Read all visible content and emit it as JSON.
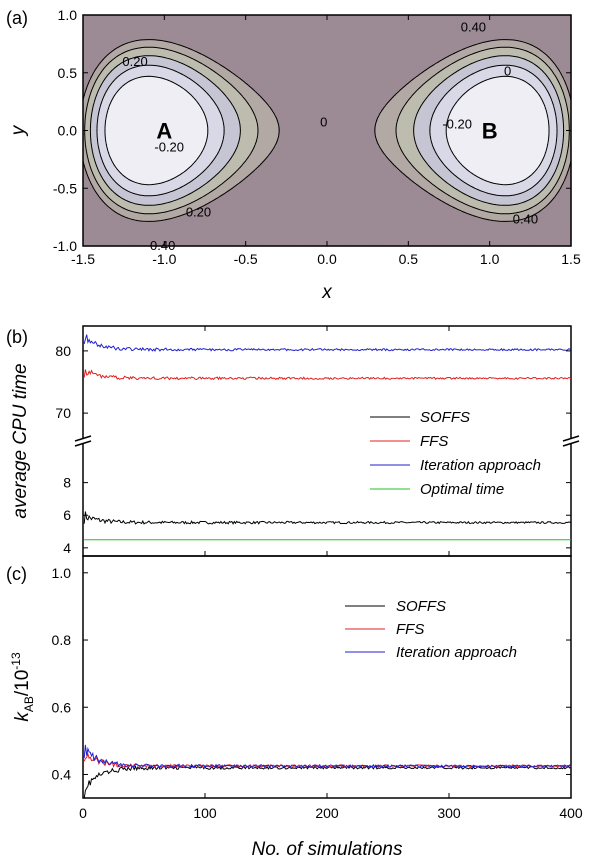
{
  "chart_data": [
    {
      "panel": "(a)",
      "type": "contour",
      "xlabel": "x",
      "ylabel": "y",
      "xlim": [
        -1.5,
        1.5
      ],
      "ylim": [
        -1.0,
        1.0
      ],
      "xticks": [
        "-1.5",
        "-1.0",
        "-0.5",
        "0.0",
        "0.5",
        "1.0",
        "1.5"
      ],
      "yticks": [
        "-1.0",
        "-0.5",
        "0.0",
        "0.5",
        "1.0"
      ],
      "state_labels": [
        "A",
        "B"
      ],
      "contour_labels": [
        {
          "text": "0.40",
          "x": 0.9,
          "y": 0.9
        },
        {
          "text": "0.20",
          "x": -1.18,
          "y": 0.6
        },
        {
          "text": "0",
          "x": 1.11,
          "y": 0.52
        },
        {
          "text": "0",
          "x": -0.02,
          "y": 0.08
        },
        {
          "text": "-0.20",
          "x": 0.8,
          "y": 0.06
        },
        {
          "text": "-0.20",
          "x": -0.97,
          "y": -0.14
        },
        {
          "text": "0.20",
          "x": -0.79,
          "y": -0.7
        },
        {
          "text": "0.40",
          "x": 1.22,
          "y": -0.76
        },
        {
          "text": "0.40",
          "x": -1.01,
          "y": -0.99
        }
      ],
      "levels": [
        -0.2,
        0,
        0.2,
        0.4,
        0.6
      ],
      "colors": [
        "#eeeef4",
        "#d9d8e6",
        "#c6c5d4",
        "#bdbcae",
        "#b2a8a4",
        "#9c8a94"
      ]
    },
    {
      "panel": "(b)",
      "type": "line",
      "ylabel": "average CPU time",
      "xlim": [
        0,
        400
      ],
      "broken_axis": {
        "lower": [
          3.5,
          10
        ],
        "upper": [
          66,
          84
        ]
      },
      "yticks_lower": [
        "4",
        "6",
        "8"
      ],
      "yticks_upper": [
        "70",
        "80"
      ],
      "series": [
        {
          "name": "SOFFS",
          "color": "#000000",
          "start": 6.0,
          "settle": 5.55
        },
        {
          "name": "FFS",
          "color": "#e02020",
          "start": 77.0,
          "settle": 75.6
        },
        {
          "name": "Iteration approach",
          "color": "#2020d0",
          "start": 82.5,
          "settle": 80.2
        },
        {
          "name": "Optimal time",
          "color": "#20c020",
          "start": 4.5,
          "settle": 4.5
        }
      ]
    },
    {
      "panel": "(c)",
      "type": "line",
      "ylabel": "k_AB/10^-13",
      "ylabel_parts": {
        "k": "k",
        "sub": "AB",
        "rest": "/10",
        "sup": "-13"
      },
      "xlabel": "No. of simulations",
      "xlim": [
        0,
        400
      ],
      "ylim": [
        0.33,
        1.05
      ],
      "xticks": [
        "0",
        "100",
        "200",
        "300",
        "400"
      ],
      "yticks": [
        "0.4",
        "0.6",
        "0.8",
        "1.0"
      ],
      "series": [
        {
          "name": "SOFFS",
          "color": "#000000",
          "start": 0.35,
          "settle": 0.42
        },
        {
          "name": "FFS",
          "color": "#e02020",
          "start": 0.47,
          "settle": 0.425
        },
        {
          "name": "Iteration approach",
          "color": "#2020d0",
          "start": 0.48,
          "settle": 0.425
        }
      ]
    }
  ]
}
